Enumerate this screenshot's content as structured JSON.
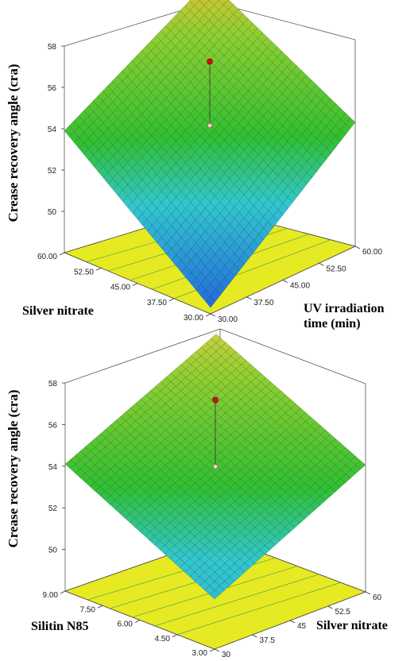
{
  "chart_data": [
    {
      "type": "surface3d",
      "zlabel": "Crease recovery angle (cra)",
      "z_ticks": [
        "58",
        "56",
        "54",
        "52",
        "50"
      ],
      "zlim": [
        48,
        58
      ],
      "x_axis": {
        "label": "Silver nitrate",
        "ticks": [
          "30.00",
          "37.50",
          "45.00",
          "52.50",
          "60.00"
        ],
        "range": [
          30,
          60
        ]
      },
      "y_axis": {
        "label_lines": [
          "UV irradiation",
          "time (min)"
        ],
        "ticks": [
          "30.00",
          "37.50",
          "45.00",
          "52.50",
          "60.00"
        ],
        "range": [
          30,
          60
        ]
      },
      "surface": {
        "corner_far": 57.9,
        "corner_left": 53.9,
        "corner_right": 54.0,
        "corner_near": 48.3
      },
      "design_point": {
        "actual": 57.1,
        "predicted": 54.0
      },
      "colors": {
        "high": "#e8c030",
        "mid": "#30c030",
        "low": "#2060e0",
        "contour": "#e6ea22"
      }
    },
    {
      "type": "surface3d",
      "zlabel": "Crease recovery angle (cra)",
      "z_ticks": [
        "58",
        "56",
        "54",
        "52",
        "50"
      ],
      "zlim": [
        48,
        58
      ],
      "x_axis": {
        "label": "Silitin N85",
        "ticks": [
          "3.00",
          "4.50",
          "6.00",
          "7.50",
          "9.00"
        ],
        "range": [
          3,
          9
        ]
      },
      "y_axis": {
        "label": "Silver nitrate",
        "ticks": [
          "30",
          "37.5",
          "45",
          "52.5",
          "60"
        ],
        "range": [
          30,
          60
        ]
      },
      "surface": {
        "corner_far": 57.6,
        "corner_left": 54.1,
        "corner_right": 54.1,
        "corner_near": 50.4
      },
      "design_point": {
        "actual": 57.2,
        "predicted": 54.0
      },
      "colors": {
        "high": "#d8d040",
        "mid": "#30c030",
        "low": "#30a0e0",
        "contour": "#e6ea22"
      }
    }
  ]
}
